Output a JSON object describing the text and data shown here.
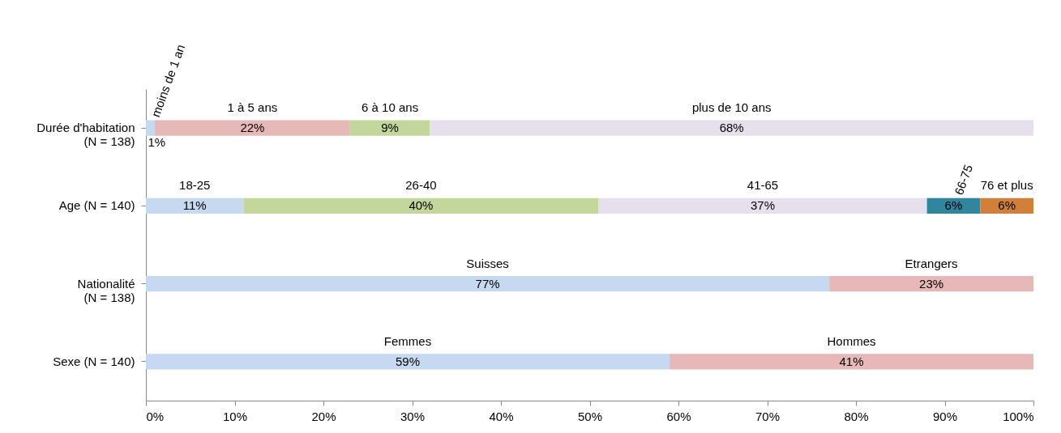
{
  "chart_data": {
    "type": "bar",
    "orientation": "horizontal",
    "stacked": true,
    "categories": [
      "Durée d'habitation (N = 138)",
      "Age (N = 140)",
      "Nationalité (N = 138)",
      "Sexe (N = 140)"
    ],
    "series": [
      {
        "values": [
          1,
          11,
          77,
          59
        ],
        "colors": [
          "#c6d9f1",
          "#c6d9f1",
          "#c6d9f1",
          "#c6d9f1"
        ],
        "value_labels": [
          "1%",
          "11%",
          "77%",
          "59%"
        ]
      },
      {
        "values": [
          22,
          40,
          23,
          41
        ],
        "colors": [
          "#e6b9b8",
          "#c3d69b",
          "#e6b9b8",
          "#e6b9b8"
        ],
        "value_labels": [
          "22%",
          "40%",
          "23%",
          "41%"
        ]
      },
      {
        "values": [
          9,
          37,
          null,
          null
        ],
        "colors": [
          "#c3d69b",
          "#e6e0ec",
          null,
          null
        ],
        "value_labels": [
          "9%",
          "37%",
          null,
          null
        ]
      },
      {
        "values": [
          68,
          6,
          null,
          null
        ],
        "colors": [
          "#e6e0ec",
          "#31859c",
          null,
          null
        ],
        "value_labels": [
          "68%",
          "6%",
          null,
          null
        ]
      },
      {
        "values": [
          null,
          6,
          null,
          null
        ],
        "colors": [
          null,
          "#d0803a",
          null,
          null
        ],
        "value_labels": [
          null,
          "6%",
          null,
          null
        ]
      }
    ],
    "annotations": [
      "moins de 1 an",
      "1 à 5 ans",
      "6 à 10 ans",
      "plus de 10 ans",
      "18-25",
      "26-40",
      "41-65",
      "66-75",
      "76 et plus",
      "Suisses",
      "Etrangers",
      "Femmes",
      "Hommes"
    ],
    "xlim": [
      0,
      100
    ],
    "xticks": [
      {
        "value": 0,
        "label": "0%"
      },
      {
        "value": 10,
        "label": "10%"
      },
      {
        "value": 20,
        "label": "20%"
      },
      {
        "value": 30,
        "label": "30%"
      },
      {
        "value": 40,
        "label": "40%"
      },
      {
        "value": 50,
        "label": "50%"
      },
      {
        "value": 60,
        "label": "60%"
      },
      {
        "value": 70,
        "label": "70%"
      },
      {
        "value": 80,
        "label": "80%"
      },
      {
        "value": 90,
        "label": "90%"
      },
      {
        "value": 100,
        "label": "100%"
      }
    ],
    "grid": false
  }
}
